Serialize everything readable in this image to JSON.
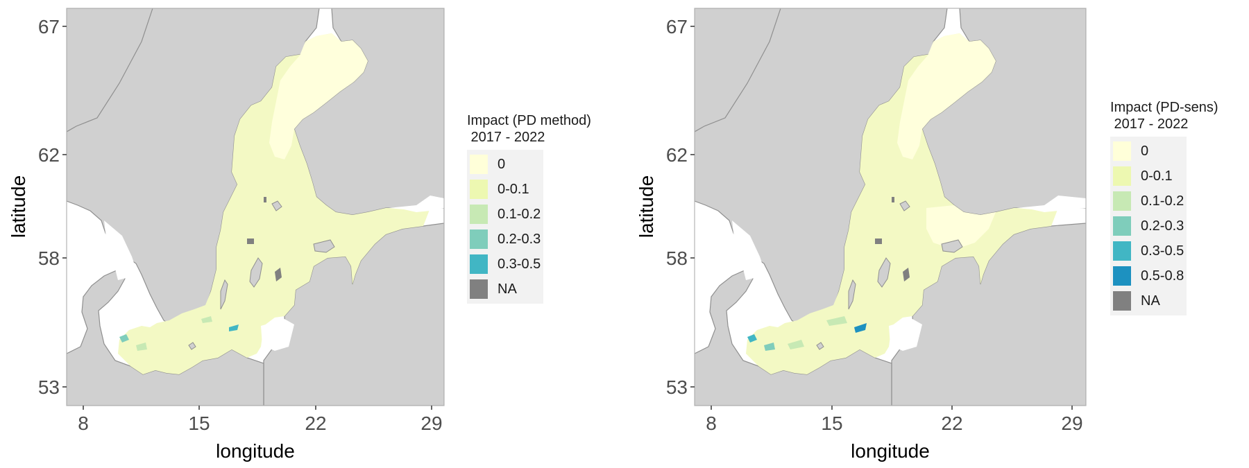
{
  "colors": {
    "land": "#d0d0d0",
    "coast": "#8f8f8f",
    "frame": "#b3b3b3",
    "water_no_data": "#ffffff"
  },
  "maps": [
    {
      "legend_title": "Impact (PD method)\n 2017 - 2022",
      "x_label": "longitude",
      "y_label": "latitude",
      "x_ticks": [
        "8",
        "15",
        "22",
        "29"
      ],
      "y_ticks": [
        "67",
        "62",
        "58",
        "53"
      ],
      "legend": [
        {
          "label": "0",
          "color": "#ffffd9"
        },
        {
          "label": "0-0.1",
          "color": "#edf8b1"
        },
        {
          "label": "0.1-0.2",
          "color": "#c7e9b4"
        },
        {
          "label": "0.2-0.3",
          "color": "#7fcdbb"
        },
        {
          "label": "0.3-0.5",
          "color": "#41b6c4"
        },
        {
          "label": "NA",
          "color": "#808080"
        }
      ]
    },
    {
      "legend_title": "Impact (PD-sens)\n 2017 - 2022",
      "x_label": "longitude",
      "y_label": "latitude",
      "x_ticks": [
        "8",
        "15",
        "22",
        "29"
      ],
      "y_ticks": [
        "67",
        "62",
        "58",
        "53"
      ],
      "legend": [
        {
          "label": "0",
          "color": "#ffffd9"
        },
        {
          "label": "0-0.1",
          "color": "#edf8b1"
        },
        {
          "label": "0.1-0.2",
          "color": "#c7e9b4"
        },
        {
          "label": "0.2-0.3",
          "color": "#7fcdbb"
        },
        {
          "label": "0.3-0.5",
          "color": "#41b6c4"
        },
        {
          "label": "0.5-0.8",
          "color": "#1d91c0"
        },
        {
          "label": "NA",
          "color": "#808080"
        }
      ]
    }
  ]
}
